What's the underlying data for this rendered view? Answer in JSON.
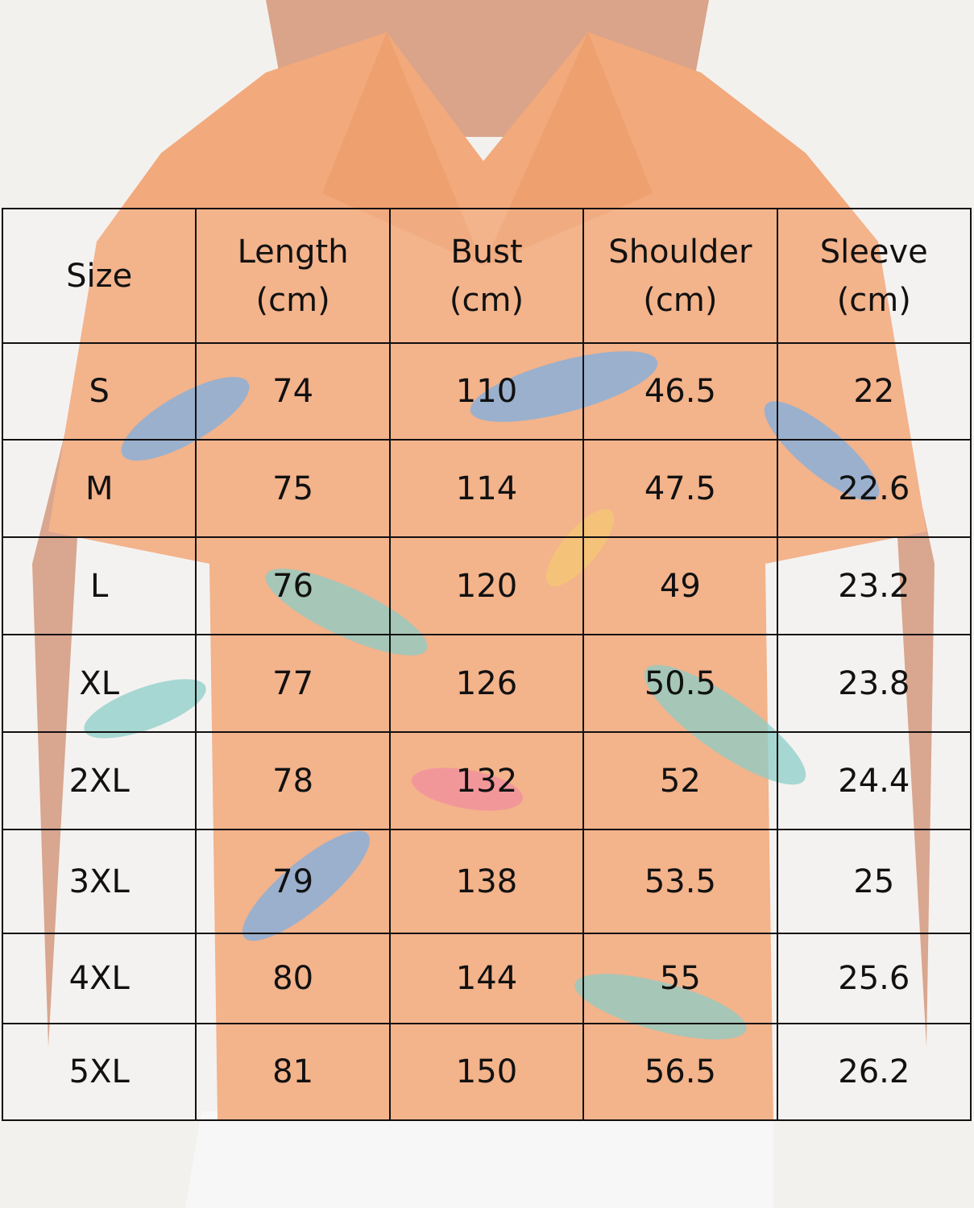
{
  "table": {
    "header": [
      "Size",
      "Length\n(cm)",
      "Bust\n(cm)",
      "Shoulder\n(cm)",
      "Sleeve\n(cm)"
    ],
    "rows": [
      [
        "S",
        74,
        110,
        46.5,
        22
      ],
      [
        "M",
        75,
        114,
        47.5,
        22.6
      ],
      [
        "L",
        76,
        120,
        49,
        23.2
      ],
      [
        "XL",
        77,
        126,
        50.5,
        23.8
      ],
      [
        "2XL",
        78,
        132,
        52,
        24.4
      ],
      [
        "3XL",
        79,
        138,
        53.5,
        25
      ],
      [
        "4XL",
        80,
        144,
        55,
        25.6
      ],
      [
        "5XL",
        81,
        150,
        56.5,
        26.2
      ]
    ]
  }
}
